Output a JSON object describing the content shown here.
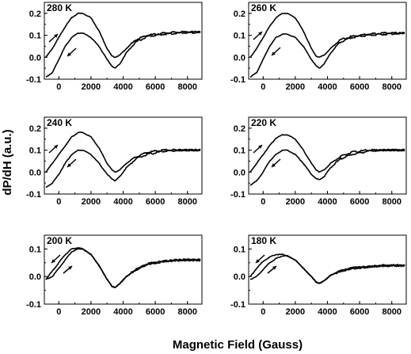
{
  "chart_data": {
    "type": "line",
    "xlabel": "Magnetic Field (Gauss)",
    "ylabel": "dP/dH (a.u.)",
    "xlim": [
      -900,
      8900
    ],
    "xticks": [
      0,
      2000,
      4000,
      6000,
      8000
    ],
    "grid": false,
    "legend": "none",
    "panels": [
      {
        "label": "280 K",
        "ylim": [
          -0.1,
          0.25
        ],
        "yticks": [
          -0.1,
          0.0,
          0.1,
          0.2
        ],
        "series": [
          {
            "x": [
              -800,
              -400,
              0,
              400,
              800,
              1200,
              1500,
              2000,
              2500,
              3000,
              3300,
              3500,
              3800,
              4200,
              4800,
              5500,
              6500,
              7500,
              8800
            ],
            "y": [
              0.0,
              0.04,
              0.09,
              0.14,
              0.18,
              0.2,
              0.2,
              0.18,
              0.12,
              0.04,
              0.005,
              0.0,
              0.01,
              0.04,
              0.08,
              0.1,
              0.11,
              0.115,
              0.115
            ]
          },
          {
            "x": [
              -800,
              -400,
              0,
              400,
              800,
              1200,
              1500,
              2000,
              2500,
              3000,
              3300,
              3500,
              3800,
              4200,
              4800,
              5500,
              6500,
              7500,
              8800
            ],
            "y": [
              -0.09,
              -0.07,
              -0.01,
              0.05,
              0.09,
              0.11,
              0.11,
              0.09,
              0.05,
              -0.01,
              -0.04,
              -0.05,
              -0.03,
              0.02,
              0.07,
              0.095,
              0.105,
              0.11,
              0.115
            ]
          }
        ]
      },
      {
        "label": "260 K",
        "ylim": [
          -0.1,
          0.25
        ],
        "yticks": [
          -0.1,
          0.0,
          0.1,
          0.2
        ],
        "series": [
          {
            "x": [
              -800,
              -400,
              0,
              400,
              800,
              1200,
              1500,
              2000,
              2500,
              3000,
              3300,
              3500,
              3800,
              4200,
              4800,
              5500,
              6500,
              7500,
              8800
            ],
            "y": [
              0.0,
              0.04,
              0.09,
              0.14,
              0.18,
              0.2,
              0.2,
              0.18,
              0.12,
              0.04,
              0.005,
              0.0,
              0.01,
              0.04,
              0.08,
              0.095,
              0.105,
              0.11,
              0.11
            ]
          },
          {
            "x": [
              -800,
              -400,
              0,
              400,
              800,
              1200,
              1500,
              2000,
              2500,
              3000,
              3300,
              3500,
              3800,
              4200,
              4800,
              5500,
              6500,
              7500,
              8800
            ],
            "y": [
              -0.09,
              -0.07,
              -0.01,
              0.05,
              0.09,
              0.105,
              0.105,
              0.09,
              0.05,
              -0.01,
              -0.04,
              -0.05,
              -0.03,
              0.02,
              0.07,
              0.09,
              0.1,
              0.105,
              0.11
            ]
          }
        ]
      },
      {
        "label": "240 K",
        "ylim": [
          -0.1,
          0.25
        ],
        "yticks": [
          -0.1,
          0.0,
          0.1,
          0.2
        ],
        "series": [
          {
            "x": [
              -800,
              -400,
              0,
              400,
              800,
              1200,
              1500,
              2000,
              2500,
              3000,
              3300,
              3500,
              3800,
              4200,
              4800,
              5500,
              6500,
              7500,
              8800
            ],
            "y": [
              0.0,
              0.04,
              0.08,
              0.12,
              0.16,
              0.18,
              0.18,
              0.16,
              0.11,
              0.04,
              0.01,
              0.0,
              0.01,
              0.04,
              0.07,
              0.09,
              0.1,
              0.1,
              0.1
            ]
          },
          {
            "x": [
              -800,
              -400,
              0,
              400,
              800,
              1200,
              1500,
              2000,
              2500,
              3000,
              3300,
              3500,
              3800,
              4200,
              4800,
              5500,
              6500,
              7500,
              8800
            ],
            "y": [
              -0.07,
              -0.05,
              -0.01,
              0.04,
              0.08,
              0.1,
              0.1,
              0.08,
              0.04,
              -0.01,
              -0.03,
              -0.04,
              -0.02,
              0.02,
              0.06,
              0.08,
              0.095,
              0.1,
              0.1
            ]
          }
        ]
      },
      {
        "label": "220 K",
        "ylim": [
          -0.1,
          0.25
        ],
        "yticks": [
          -0.1,
          0.0,
          0.1,
          0.2
        ],
        "series": [
          {
            "x": [
              -800,
              -400,
              0,
              400,
              800,
              1200,
              1500,
              2000,
              2500,
              3000,
              3300,
              3500,
              3800,
              4200,
              4800,
              5500,
              6500,
              7500,
              8800
            ],
            "y": [
              0.0,
              0.04,
              0.08,
              0.12,
              0.155,
              0.17,
              0.17,
              0.15,
              0.1,
              0.04,
              0.01,
              0.0,
              0.01,
              0.04,
              0.07,
              0.09,
              0.1,
              0.1,
              0.1
            ]
          },
          {
            "x": [
              -800,
              -400,
              0,
              400,
              800,
              1200,
              1500,
              2000,
              2500,
              3000,
              3300,
              3500,
              3800,
              4200,
              4800,
              5500,
              6500,
              7500,
              8800
            ],
            "y": [
              -0.06,
              -0.04,
              0.0,
              0.05,
              0.08,
              0.1,
              0.1,
              0.08,
              0.04,
              -0.01,
              -0.03,
              -0.035,
              -0.02,
              0.02,
              0.06,
              0.08,
              0.095,
              0.1,
              0.1
            ]
          }
        ]
      },
      {
        "label": "200 K",
        "ylim": [
          -0.1,
          0.15
        ],
        "yticks": [
          -0.1,
          0.0,
          0.1
        ],
        "series": [
          {
            "x": [
              -800,
              -400,
              0,
              400,
              800,
              1200,
              1500,
              2000,
              2500,
              3000,
              3300,
              3500,
              3800,
              4200,
              4800,
              5500,
              6500,
              7500,
              8800
            ],
            "y": [
              -0.01,
              0.02,
              0.05,
              0.08,
              0.1,
              0.105,
              0.1,
              0.08,
              0.04,
              -0.01,
              -0.035,
              -0.04,
              -0.025,
              0.0,
              0.025,
              0.045,
              0.055,
              0.06,
              0.06
            ]
          },
          {
            "x": [
              -800,
              -400,
              0,
              400,
              800,
              1200,
              1500,
              2000,
              2500,
              3000,
              3300,
              3500,
              3800,
              4200,
              4800,
              5500,
              6500,
              7500,
              8800
            ],
            "y": [
              -0.01,
              0.0,
              0.03,
              0.06,
              0.09,
              0.1,
              0.1,
              0.08,
              0.04,
              -0.01,
              -0.035,
              -0.04,
              -0.025,
              0.0,
              0.025,
              0.045,
              0.055,
              0.06,
              0.06
            ]
          }
        ]
      },
      {
        "label": "180 K",
        "ylim": [
          -0.1,
          0.15
        ],
        "yticks": [
          -0.1,
          0.0,
          0.1
        ],
        "series": [
          {
            "x": [
              -800,
              -400,
              0,
              400,
              800,
              1200,
              1500,
              2000,
              2500,
              3000,
              3300,
              3500,
              3800,
              4200,
              4800,
              5500,
              6500,
              7500,
              8800
            ],
            "y": [
              0.0,
              0.03,
              0.055,
              0.07,
              0.08,
              0.08,
              0.075,
              0.06,
              0.03,
              0.0,
              -0.02,
              -0.025,
              -0.015,
              0.005,
              0.02,
              0.03,
              0.035,
              0.04,
              0.04
            ]
          },
          {
            "x": [
              -800,
              -400,
              0,
              400,
              800,
              1200,
              1500,
              2000,
              2500,
              3000,
              3300,
              3500,
              3800,
              4200,
              4800,
              5500,
              6500,
              7500,
              8800
            ],
            "y": [
              -0.01,
              0.0,
              0.025,
              0.05,
              0.065,
              0.075,
              0.075,
              0.06,
              0.03,
              0.0,
              -0.02,
              -0.025,
              -0.015,
              0.005,
              0.02,
              0.03,
              0.035,
              0.04,
              0.04
            ]
          }
        ]
      }
    ]
  }
}
